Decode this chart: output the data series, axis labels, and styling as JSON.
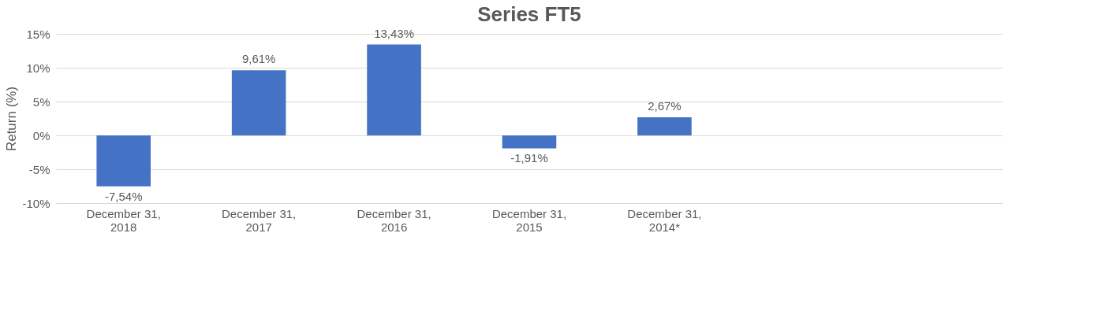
{
  "chart_data": {
    "type": "bar",
    "title": "Series FT5",
    "ylabel": "Return (%)",
    "categories": [
      "December 31, 2018",
      "December 31, 2017",
      "December 31, 2016",
      "December 31, 2015",
      "December 31, 2014*",
      null,
      null
    ],
    "values": [
      -7.54,
      9.61,
      13.43,
      -1.91,
      2.67,
      null,
      null
    ],
    "value_labels": [
      "-7,54%",
      "9,61%",
      "13,43%",
      "-1,91%",
      "2,67%",
      null,
      null
    ],
    "color": "#4472c4",
    "ylim": [
      -10,
      15
    ],
    "yticks": [
      {
        "value": -10,
        "label": "-10%"
      },
      {
        "value": -5,
        "label": "-5%"
      },
      {
        "value": 0,
        "label": "0%"
      },
      {
        "value": 5,
        "label": "5%"
      },
      {
        "value": 10,
        "label": "10%"
      },
      {
        "value": 15,
        "label": "15%"
      }
    ],
    "grid": "y"
  }
}
